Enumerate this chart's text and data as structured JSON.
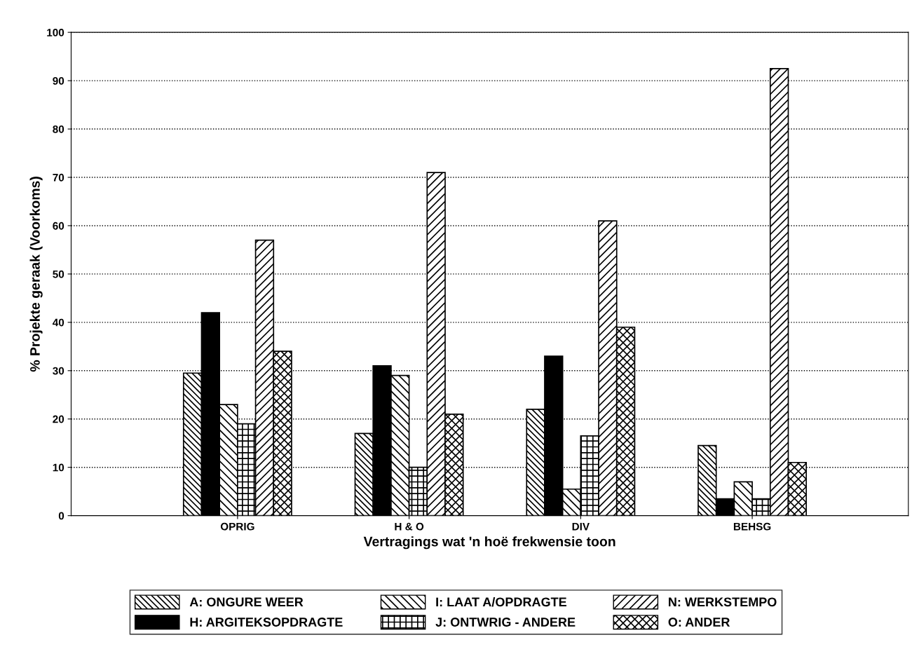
{
  "chart_data": {
    "type": "bar",
    "xlabel": "Vertragings wat 'n hoë frekwensie toon",
    "ylabel": "% Projekte geraak (Voorkoms)",
    "categories": [
      "OPRIG",
      "H & O",
      "DIV",
      "BEHSG"
    ],
    "series": [
      {
        "name": "A: ONGURE WEER",
        "color": "#000000",
        "values": [
          29.5,
          17,
          22,
          14.5
        ]
      },
      {
        "name": "H: ARGITEKSOPDRAGTE",
        "color": "#000000",
        "values": [
          42,
          31,
          33,
          3.5
        ]
      },
      {
        "name": "I: LAAT A/OPDRAGTE",
        "color": "#000000",
        "values": [
          23,
          29,
          5.5,
          7
        ]
      },
      {
        "name": "J: ONTWRIG - ANDERE",
        "color": "#000000",
        "values": [
          19,
          10,
          16.5,
          3.5
        ]
      },
      {
        "name": "N: WERKSTEMPO",
        "color": "#000000",
        "values": [
          57,
          71,
          61,
          92.5
        ]
      },
      {
        "name": "O: ANDER",
        "color": "#000000",
        "values": [
          34,
          21,
          39,
          11
        ]
      }
    ],
    "ylim": [
      0,
      100
    ],
    "yticks": [
      0,
      10,
      20,
      30,
      40,
      50,
      60,
      70,
      80,
      90,
      100
    ],
    "grid": "y",
    "legend": "bottom"
  }
}
